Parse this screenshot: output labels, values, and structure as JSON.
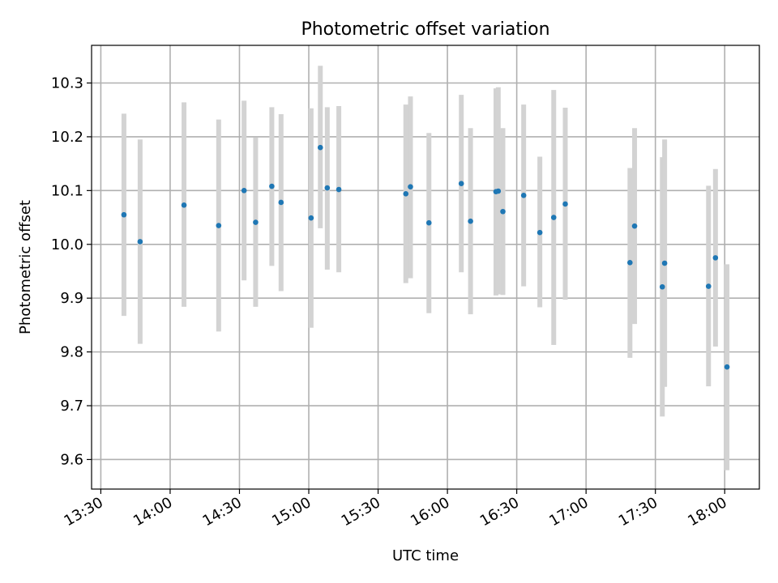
{
  "chart_data": {
    "type": "scatter",
    "title": "Photometric offset variation",
    "xlabel": "UTC time",
    "ylabel": "Photometric offset",
    "x_tick_labels": [
      "13:30",
      "14:00",
      "14:30",
      "15:00",
      "15:30",
      "16:00",
      "16:30",
      "17:00",
      "17:30",
      "18:00"
    ],
    "y_tick_labels": [
      "9.6",
      "9.7",
      "9.8",
      "9.9",
      "10.0",
      "10.1",
      "10.2",
      "10.3"
    ],
    "xlim": [
      "13:26",
      "18:15"
    ],
    "ylim": [
      9.545,
      10.37
    ],
    "grid": true,
    "colors": {
      "point": "#1f77b4",
      "errorbar": "#d3d3d3",
      "grid": "#b0b0b0"
    },
    "points": [
      {
        "time": "13:40",
        "y": 10.055,
        "yerr_low": 9.867,
        "yerr_high": 10.243
      },
      {
        "time": "13:47",
        "y": 10.005,
        "yerr_low": 9.815,
        "yerr_high": 10.195
      },
      {
        "time": "14:06",
        "y": 10.073,
        "yerr_low": 9.884,
        "yerr_high": 10.264
      },
      {
        "time": "14:21",
        "y": 10.035,
        "yerr_low": 9.838,
        "yerr_high": 10.232
      },
      {
        "time": "14:32",
        "y": 10.1,
        "yerr_low": 9.933,
        "yerr_high": 10.267
      },
      {
        "time": "14:37",
        "y": 10.041,
        "yerr_low": 9.884,
        "yerr_high": 10.199
      },
      {
        "time": "14:44",
        "y": 10.108,
        "yerr_low": 9.96,
        "yerr_high": 10.255
      },
      {
        "time": "14:48",
        "y": 10.078,
        "yerr_low": 9.913,
        "yerr_high": 10.242
      },
      {
        "time": "15:01",
        "y": 10.049,
        "yerr_low": 9.845,
        "yerr_high": 10.253
      },
      {
        "time": "15:05",
        "y": 10.18,
        "yerr_low": 10.03,
        "yerr_high": 10.332
      },
      {
        "time": "15:08",
        "y": 10.105,
        "yerr_low": 9.953,
        "yerr_high": 10.255
      },
      {
        "time": "15:13",
        "y": 10.102,
        "yerr_low": 9.948,
        "yerr_high": 10.257
      },
      {
        "time": "15:42",
        "y": 10.094,
        "yerr_low": 9.928,
        "yerr_high": 10.26
      },
      {
        "time": "15:44",
        "y": 10.107,
        "yerr_low": 9.937,
        "yerr_high": 10.275
      },
      {
        "time": "15:52",
        "y": 10.04,
        "yerr_low": 9.872,
        "yerr_high": 10.207
      },
      {
        "time": "16:06",
        "y": 10.113,
        "yerr_low": 9.948,
        "yerr_high": 10.278
      },
      {
        "time": "16:10",
        "y": 10.043,
        "yerr_low": 9.87,
        "yerr_high": 10.216
      },
      {
        "time": "16:21",
        "y": 10.098,
        "yerr_low": 9.905,
        "yerr_high": 10.29
      },
      {
        "time": "16:22",
        "y": 10.099,
        "yerr_low": 9.907,
        "yerr_high": 10.292
      },
      {
        "time": "16:24",
        "y": 10.061,
        "yerr_low": 9.906,
        "yerr_high": 10.216
      },
      {
        "time": "16:33",
        "y": 10.091,
        "yerr_low": 9.922,
        "yerr_high": 10.26
      },
      {
        "time": "16:40",
        "y": 10.022,
        "yerr_low": 9.883,
        "yerr_high": 10.163
      },
      {
        "time": "16:46",
        "y": 10.05,
        "yerr_low": 9.813,
        "yerr_high": 10.287
      },
      {
        "time": "16:51",
        "y": 10.075,
        "yerr_low": 9.897,
        "yerr_high": 10.254
      },
      {
        "time": "17:19",
        "y": 9.966,
        "yerr_low": 9.789,
        "yerr_high": 10.142
      },
      {
        "time": "17:21",
        "y": 10.034,
        "yerr_low": 9.852,
        "yerr_high": 10.216
      },
      {
        "time": "17:33",
        "y": 9.921,
        "yerr_low": 9.68,
        "yerr_high": 10.162
      },
      {
        "time": "17:34",
        "y": 9.965,
        "yerr_low": 9.735,
        "yerr_high": 10.195
      },
      {
        "time": "17:53",
        "y": 9.922,
        "yerr_low": 9.736,
        "yerr_high": 10.109
      },
      {
        "time": "17:56",
        "y": 9.975,
        "yerr_low": 9.81,
        "yerr_high": 10.14
      },
      {
        "time": "18:01",
        "y": 9.772,
        "yerr_low": 9.58,
        "yerr_high": 9.963
      }
    ]
  }
}
